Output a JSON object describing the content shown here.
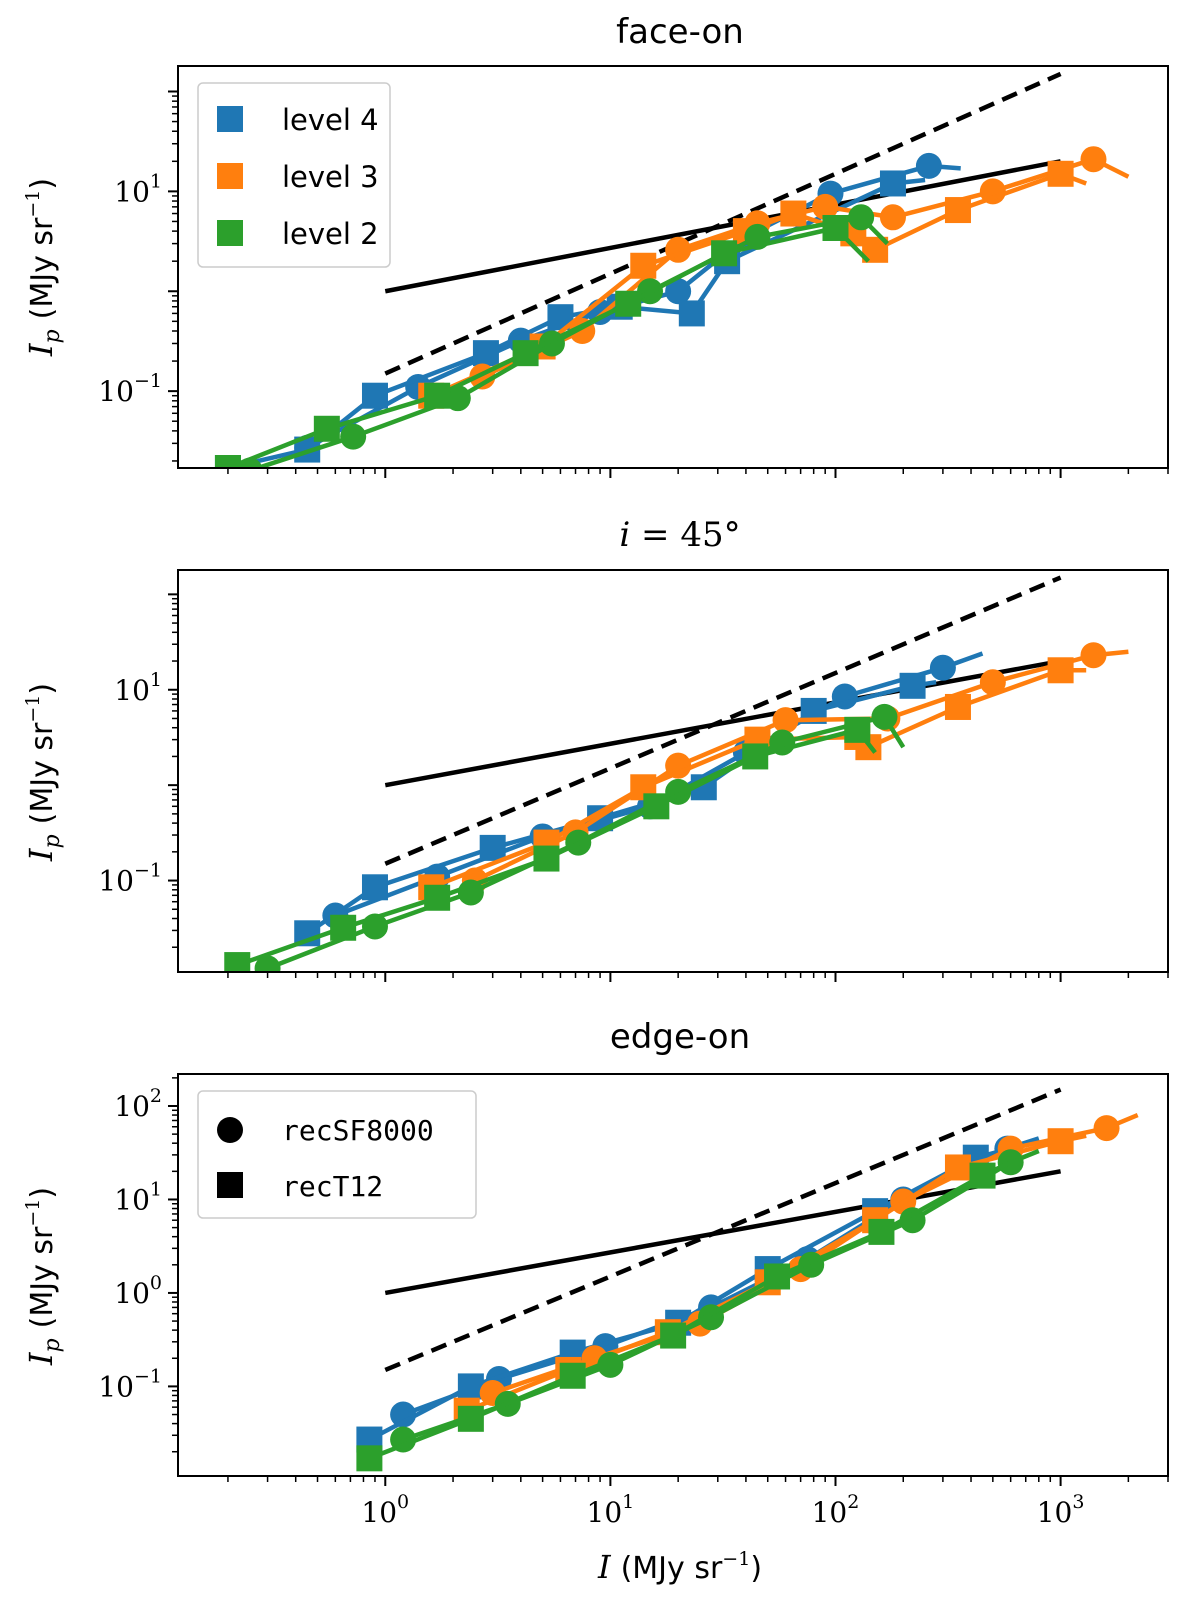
{
  "chart_data": [
    {
      "type": "line",
      "title": "face-on",
      "xlabel_var": "I",
      "xlabel_unit": "(MJy sr",
      "ylabel_var": "I",
      "ylabel_sub": "p",
      "ylabel_unit": "(MJy sr",
      "xscale": "log",
      "yscale": "log",
      "xlim": [
        0.12,
        3000
      ],
      "ylim": [
        0.017,
        180
      ],
      "yticks": [
        {
          "base": "10",
          "exp": "1",
          "value": 10
        },
        {
          "base": "10",
          "exp": "−1",
          "value": 0.1
        }
      ],
      "legend": {
        "position": "top-left",
        "entries": [
          {
            "label": "level 4",
            "color": "#1f77b4"
          },
          {
            "label": "level 3",
            "color": "#ff7f0e"
          },
          {
            "label": "level 2",
            "color": "#2ca02c"
          }
        ]
      },
      "reference_lines": [
        {
          "style": "dashed",
          "x": [
            1,
            1000
          ],
          "y": [
            0.15,
            150
          ]
        },
        {
          "style": "solid",
          "x": [
            1,
            1000
          ],
          "y": [
            1.0,
            20
          ]
        }
      ],
      "series": [
        {
          "name": "level 4 recSF8000",
          "color": "#1f77b4",
          "marker": "circle",
          "x": [
            0.45,
            1.4,
            4.0,
            9.0,
            20,
            40,
            95,
            260,
            360
          ],
          "y": [
            0.027,
            0.11,
            0.32,
            0.62,
            1.0,
            3.5,
            9.5,
            18,
            17
          ]
        },
        {
          "name": "level 4 recT12",
          "color": "#1f77b4",
          "marker": "square",
          "x": [
            0.2,
            0.45,
            0.9,
            2.8,
            6.0,
            11,
            23,
            33,
            180,
            250
          ],
          "y": [
            0.017,
            0.026,
            0.09,
            0.24,
            0.55,
            0.7,
            0.6,
            2.0,
            12,
            13
          ]
        },
        {
          "name": "level 3 recSF8000",
          "color": "#ff7f0e",
          "marker": "circle",
          "x": [
            2.7,
            7.5,
            20,
            45,
            90,
            180,
            500,
            1400,
            2000
          ],
          "y": [
            0.14,
            0.4,
            2.6,
            4.8,
            7.0,
            5.5,
            10,
            21,
            14
          ]
        },
        {
          "name": "level 3 recT12",
          "color": "#ff7f0e",
          "marker": "square",
          "x": [
            1.6,
            5.0,
            14,
            40,
            65,
            120,
            150,
            350,
            1000,
            1300
          ],
          "y": [
            0.09,
            0.28,
            1.8,
            4.0,
            6.0,
            3.8,
            2.6,
            6.5,
            15,
            12
          ]
        },
        {
          "name": "level 2 recSF8000",
          "color": "#2ca02c",
          "marker": "circle",
          "x": [
            0.25,
            0.72,
            2.1,
            5.5,
            15,
            45,
            130,
            170
          ],
          "y": [
            0.016,
            0.035,
            0.085,
            0.3,
            1.0,
            3.5,
            5.5,
            3.0
          ]
        },
        {
          "name": "level 2 recT12",
          "color": "#2ca02c",
          "marker": "square",
          "x": [
            0.2,
            0.55,
            1.7,
            4.2,
            12,
            32,
            100,
            140
          ],
          "y": [
            0.017,
            0.042,
            0.09,
            0.24,
            0.75,
            2.4,
            4.3,
            2.0
          ]
        }
      ]
    },
    {
      "type": "line",
      "title": "i = 45°",
      "title_var": "i",
      "title_rest": " = 45°",
      "xlabel_var": "I",
      "xlabel_unit": "(MJy sr",
      "ylabel_var": "I",
      "ylabel_sub": "p",
      "ylabel_unit": "(MJy sr",
      "xscale": "log",
      "yscale": "log",
      "xlim": [
        0.12,
        3000
      ],
      "ylim": [
        0.011,
        180
      ],
      "yticks": [
        {
          "base": "10",
          "exp": "1",
          "value": 10
        },
        {
          "base": "10",
          "exp": "−1",
          "value": 0.1
        }
      ],
      "legend": null,
      "reference_lines": [
        {
          "style": "dashed",
          "x": [
            1,
            1000
          ],
          "y": [
            0.15,
            150
          ]
        },
        {
          "style": "solid",
          "x": [
            1,
            1000
          ],
          "y": [
            1.0,
            20
          ]
        }
      ],
      "series": [
        {
          "name": "level 4 recSF8000",
          "color": "#1f77b4",
          "marker": "circle",
          "x": [
            0.6,
            1.7,
            5.0,
            15,
            40,
            110,
            300,
            450
          ],
          "y": [
            0.043,
            0.11,
            0.29,
            0.6,
            2.2,
            8.5,
            17,
            24
          ]
        },
        {
          "name": "level 4 recT12",
          "color": "#1f77b4",
          "marker": "square",
          "x": [
            0.45,
            0.9,
            3.0,
            9.0,
            26,
            80,
            220,
            280
          ],
          "y": [
            0.028,
            0.085,
            0.22,
            0.45,
            0.95,
            6.0,
            11,
            12
          ]
        },
        {
          "name": "level 3 recSF8000",
          "color": "#ff7f0e",
          "marker": "circle",
          "x": [
            2.5,
            7.0,
            20,
            60,
            170,
            500,
            1400,
            2000
          ],
          "y": [
            0.1,
            0.32,
            1.6,
            4.8,
            5.0,
            12,
            23,
            25
          ]
        },
        {
          "name": "level 3 recT12",
          "color": "#ff7f0e",
          "marker": "square",
          "x": [
            1.6,
            5.2,
            14,
            45,
            125,
            140,
            350,
            1000,
            1300
          ],
          "y": [
            0.085,
            0.25,
            0.95,
            3.0,
            3.2,
            2.5,
            6.6,
            16,
            16
          ]
        },
        {
          "name": "level 2 recSF8000",
          "color": "#2ca02c",
          "marker": "circle",
          "x": [
            0.3,
            0.9,
            2.4,
            7.2,
            20,
            58,
            165,
            200
          ],
          "y": [
            0.012,
            0.033,
            0.075,
            0.25,
            0.85,
            2.8,
            5.2,
            2.5
          ]
        },
        {
          "name": "level 2 recT12",
          "color": "#2ca02c",
          "marker": "square",
          "x": [
            0.22,
            0.65,
            1.7,
            5.2,
            16,
            44,
            125,
            150
          ],
          "y": [
            0.013,
            0.032,
            0.066,
            0.17,
            0.6,
            2.0,
            3.8,
            2.2
          ]
        }
      ]
    },
    {
      "type": "line",
      "title": "edge-on",
      "xlabel_var": "I",
      "xlabel_unit": "(MJy sr",
      "ylabel_var": "I",
      "ylabel_sub": "p",
      "ylabel_unit": "(MJy sr",
      "xscale": "log",
      "yscale": "log",
      "xlim": [
        0.12,
        3000
      ],
      "ylim": [
        0.011,
        220
      ],
      "yticks": [
        {
          "base": "10",
          "exp": "2",
          "value": 100
        },
        {
          "base": "10",
          "exp": "1",
          "value": 10
        },
        {
          "base": "10",
          "exp": "0",
          "value": 1
        },
        {
          "base": "10",
          "exp": "−1",
          "value": 0.1
        }
      ],
      "xticks": [
        {
          "base": "10",
          "exp": "0",
          "value": 1
        },
        {
          "base": "10",
          "exp": "1",
          "value": 10
        },
        {
          "base": "10",
          "exp": "2",
          "value": 100
        },
        {
          "base": "10",
          "exp": "3",
          "value": 1000
        }
      ],
      "legend": {
        "position": "top-left",
        "entries": [
          {
            "label": "recSF8000",
            "marker": "circle"
          },
          {
            "label": "recT12",
            "marker": "square"
          }
        ]
      },
      "reference_lines": [
        {
          "style": "dashed",
          "x": [
            1,
            1000
          ],
          "y": [
            0.15,
            150
          ]
        },
        {
          "style": "solid",
          "x": [
            1,
            1000
          ],
          "y": [
            1.0,
            20
          ]
        }
      ],
      "series": [
        {
          "name": "level 4 recSF8000",
          "color": "#1f77b4",
          "marker": "circle",
          "x": [
            1.2,
            3.2,
            9.5,
            28,
            75,
            200,
            580,
            800
          ],
          "y": [
            0.05,
            0.12,
            0.27,
            0.7,
            2.3,
            10,
            35,
            45
          ]
        },
        {
          "name": "level 4 recT12",
          "color": "#1f77b4",
          "marker": "square",
          "x": [
            0.85,
            2.4,
            6.8,
            20,
            50,
            150,
            420,
            600
          ],
          "y": [
            0.027,
            0.1,
            0.23,
            0.48,
            1.8,
            7.5,
            28,
            35
          ]
        },
        {
          "name": "level 3 recSF8000",
          "color": "#ff7f0e",
          "marker": "circle",
          "x": [
            3.0,
            8.5,
            25,
            70,
            200,
            600,
            1600,
            2200
          ],
          "y": [
            0.085,
            0.2,
            0.47,
            1.8,
            9.5,
            35,
            58,
            80
          ]
        },
        {
          "name": "level 3 recT12",
          "color": "#ff7f0e",
          "marker": "square",
          "x": [
            2.3,
            6.5,
            18,
            50,
            150,
            350,
            1000,
            1300
          ],
          "y": [
            0.055,
            0.15,
            0.38,
            1.3,
            6.0,
            22,
            42,
            48
          ]
        },
        {
          "name": "level 2 recSF8000",
          "color": "#2ca02c",
          "marker": "circle",
          "x": [
            1.2,
            3.5,
            10,
            28,
            78,
            220,
            600,
            800
          ],
          "y": [
            0.027,
            0.065,
            0.17,
            0.55,
            2.0,
            6.0,
            25,
            33
          ]
        },
        {
          "name": "level 2 recT12",
          "color": "#2ca02c",
          "marker": "square",
          "x": [
            0.85,
            2.4,
            6.8,
            19,
            55,
            160,
            450,
            600
          ],
          "y": [
            0.017,
            0.045,
            0.13,
            0.35,
            1.5,
            4.5,
            18,
            25
          ]
        }
      ]
    }
  ]
}
